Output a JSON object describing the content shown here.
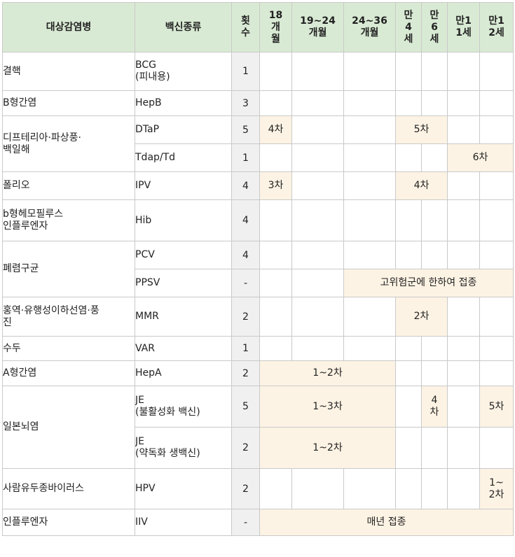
{
  "headers": {
    "disease": "대상감염병",
    "vaccine": "백신종류",
    "count": "횟\n수",
    "m18": "18\n개\n월",
    "m19_24": "19~24\n개월",
    "m24_36": "24~36\n개월",
    "y4": "만\n4\n세",
    "y6": "만\n6\n세",
    "y11": "만1\n1세",
    "y12": "만1\n2세"
  },
  "rows": {
    "bcg": {
      "disease": "결핵",
      "vaccine": "BCG\n(피내용)",
      "count": "1"
    },
    "hepb": {
      "disease": "B형간염",
      "vaccine": "HepB",
      "count": "3"
    },
    "dtap": {
      "disease": "디프테리아·파상풍·\n백일해",
      "vaccine": "DTaP",
      "count": "5",
      "m18": "4차",
      "y4_6": "5차"
    },
    "tdap": {
      "vaccine": "Tdap/Td",
      "count": "1",
      "y11_12": "6차"
    },
    "ipv": {
      "disease": "폴리오",
      "vaccine": "IPV",
      "count": "4",
      "m18": "3차",
      "y4_6": "4차"
    },
    "hib": {
      "disease": "b형헤모필루스\n인플루엔자",
      "vaccine": "Hib",
      "count": "4"
    },
    "pcv": {
      "disease": "폐렴구균",
      "vaccine": "PCV",
      "count": "4"
    },
    "ppsv": {
      "vaccine": "PPSV",
      "count": "-",
      "span": "고위험군에 한하여 접종"
    },
    "mmr": {
      "disease": "홍역·유행성이하선염·풍\n진",
      "vaccine": "MMR",
      "count": "2",
      "y4_6": "2차"
    },
    "var": {
      "disease": "수두",
      "vaccine": "VAR",
      "count": "1"
    },
    "hepa": {
      "disease": "A형간염",
      "vaccine": "HepA",
      "count": "2",
      "span": "1~2차"
    },
    "je_i": {
      "disease": "일본뇌염",
      "vaccine": "JE\n(불활성화 백신)",
      "count": "5",
      "span": "1~3차",
      "y6": "4\n차",
      "y12": "5차"
    },
    "je_l": {
      "vaccine": "JE\n(약독화 생백신)",
      "count": "2",
      "span": "1~2차"
    },
    "hpv": {
      "disease": "사람유두종바이러스",
      "vaccine": "HPV",
      "count": "2",
      "y12": "1~\n2차"
    },
    "iiv": {
      "disease": "인플루엔자",
      "vaccine": "IIV",
      "count": "-",
      "span": "매년 접종"
    }
  }
}
